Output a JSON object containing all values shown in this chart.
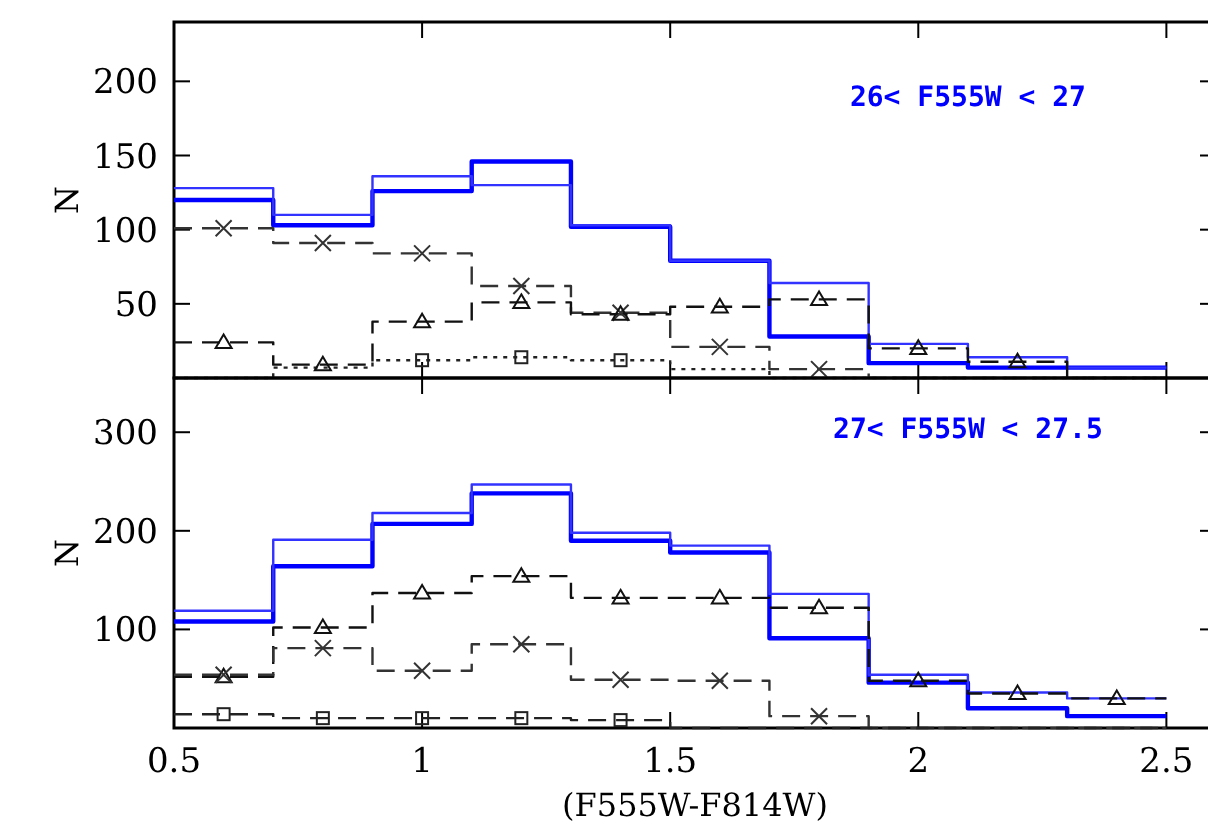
{
  "chart_data": [
    {
      "type": "histogram",
      "bins": [
        0.5,
        0.7,
        0.9,
        1.1,
        1.3,
        1.5,
        1.7,
        1.9,
        2.1,
        2.3,
        2.5
      ],
      "ylabel": "N",
      "xlim": [
        0.5,
        2.6
      ],
      "xticks": [
        0.5,
        1,
        1.5,
        2,
        2.5
      ],
      "ylim": [
        0,
        240
      ],
      "yticks": [
        50,
        100,
        150,
        200
      ],
      "tick_labels": "y",
      "grid": false,
      "annotations": [
        "26< F555W < 27"
      ],
      "series": [
        {
          "color": "#0000ff",
          "line_style": "solid",
          "values": [
            120,
            103,
            126,
            146,
            102,
            79,
            28,
            10,
            7,
            7
          ]
        },
        {
          "color": "#3333ff",
          "line_style": "solid",
          "values": [
            128,
            110,
            136,
            130,
            103,
            79,
            64,
            23,
            14,
            7
          ]
        },
        {
          "color": "#333333",
          "line_style": "dashed",
          "values": [
            101,
            91,
            84,
            62,
            44,
            21,
            6,
            0,
            0,
            0
          ]
        },
        {
          "color": "#111111",
          "line_style": "dashed",
          "values": [
            24,
            9,
            38,
            51,
            43,
            48,
            53,
            20,
            11,
            0
          ]
        },
        {
          "color": "#222222",
          "line_style": "dotted",
          "values": [
            0,
            7,
            12,
            14,
            12,
            6,
            0,
            0,
            0,
            0
          ]
        },
        {
          "type": "scatter",
          "color": "#333333",
          "marker": "cross",
          "x": [
            0.6,
            0.8,
            1.0,
            1.2,
            1.4,
            1.6,
            1.8
          ],
          "values": [
            101,
            91,
            84,
            62,
            44,
            21,
            6
          ]
        },
        {
          "type": "scatter",
          "color": "#111111",
          "marker": "triangle",
          "x": [
            0.6,
            0.8,
            1.0,
            1.2,
            1.4,
            1.6,
            1.8,
            2.0,
            2.2
          ],
          "values": [
            24,
            9,
            38,
            51,
            43,
            48,
            53,
            20,
            11
          ]
        },
        {
          "type": "scatter",
          "color": "#222222",
          "marker": "square",
          "x": [
            1.0,
            1.2,
            1.4
          ],
          "values": [
            12,
            14,
            12
          ]
        }
      ]
    },
    {
      "type": "histogram",
      "bins": [
        0.5,
        0.7,
        0.9,
        1.1,
        1.3,
        1.5,
        1.7,
        1.9,
        2.1,
        2.3,
        2.5
      ],
      "xlabel": "(F555W-F814W)",
      "ylabel": "N",
      "xlim": [
        0.5,
        2.6
      ],
      "xticks": [
        0.5,
        1,
        1.5,
        2,
        2.5
      ],
      "ylim": [
        0,
        355
      ],
      "yticks": [
        100,
        200,
        300
      ],
      "grid": false,
      "annotations": [
        "27< F555W < 27.5"
      ],
      "series": [
        {
          "color": "#0000ff",
          "line_style": "solid",
          "values": [
            108,
            164,
            207,
            238,
            190,
            178,
            91,
            46,
            20,
            12
          ]
        },
        {
          "color": "#3333ff",
          "line_style": "solid",
          "values": [
            119,
            191,
            218,
            247,
            198,
            185,
            136,
            54,
            36,
            30
          ]
        },
        {
          "color": "#111111",
          "line_style": "dashed",
          "values": [
            52,
            102,
            137,
            154,
            132,
            132,
            122,
            48,
            35,
            30
          ]
        },
        {
          "color": "#333333",
          "line_style": "dashed",
          "values": [
            54,
            81,
            58,
            85,
            49,
            48,
            12,
            0,
            0,
            0
          ]
        },
        {
          "color": "#222222",
          "line_style": "dashed",
          "values": [
            14,
            10,
            10,
            10,
            8,
            0,
            0,
            0,
            0,
            0
          ]
        },
        {
          "type": "scatter",
          "color": "#111111",
          "marker": "triangle",
          "x": [
            0.6,
            0.8,
            1.0,
            1.2,
            1.4,
            1.6,
            1.8,
            2.0,
            2.2,
            2.4
          ],
          "values": [
            52,
            102,
            137,
            154,
            132,
            132,
            122,
            48,
            35,
            30
          ]
        },
        {
          "type": "scatter",
          "color": "#333333",
          "marker": "cross",
          "x": [
            0.6,
            0.8,
            1.0,
            1.2,
            1.4,
            1.6,
            1.8
          ],
          "values": [
            54,
            81,
            58,
            85,
            49,
            48,
            12
          ]
        },
        {
          "type": "scatter",
          "color": "#222222",
          "marker": "square",
          "x": [
            0.6,
            0.8,
            1.0,
            1.2,
            1.4
          ],
          "values": [
            14,
            10,
            10,
            10,
            8
          ]
        }
      ]
    }
  ]
}
